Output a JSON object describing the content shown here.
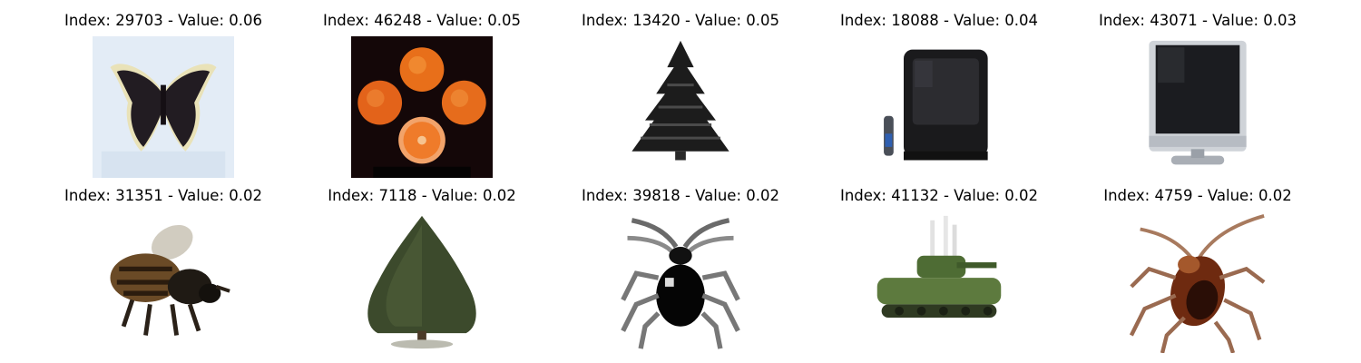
{
  "grid": {
    "items": [
      {
        "title": "Index: 29703 - Value: 0.06",
        "icon": "butterfly-image"
      },
      {
        "title": "Index: 46248 - Value: 0.05",
        "icon": "oranges-image"
      },
      {
        "title": "Index: 13420 - Value: 0.05",
        "icon": "pine-tree-image"
      },
      {
        "title": "Index: 18088 - Value: 0.04",
        "icon": "crt-television-image"
      },
      {
        "title": "Index: 43071 - Value: 0.03",
        "icon": "flat-television-image"
      },
      {
        "title": "Index: 31351 - Value: 0.02",
        "icon": "bee-image"
      },
      {
        "title": "Index: 7118 - Value: 0.02",
        "icon": "shrub-tree-image"
      },
      {
        "title": "Index: 39818 - Value: 0.02",
        "icon": "beetle-image"
      },
      {
        "title": "Index: 41132 - Value: 0.02",
        "icon": "tank-image"
      },
      {
        "title": "Index: 4759 - Value: 0.02",
        "icon": "cockroach-image"
      }
    ]
  }
}
